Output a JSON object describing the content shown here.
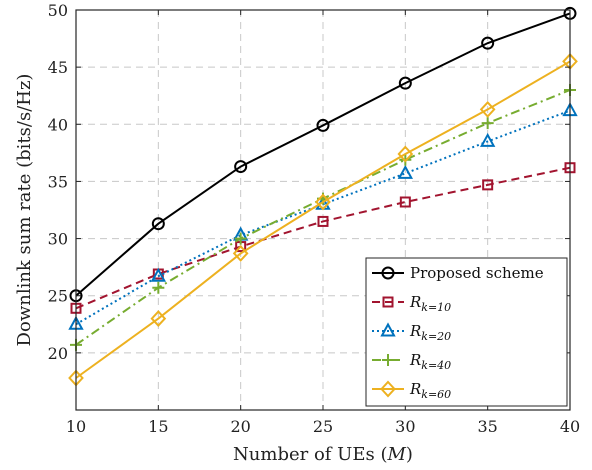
{
  "chart_data": {
    "type": "line",
    "title": "",
    "xlabel": "Number of UEs (M)",
    "xlabel_main": "Number of UEs (",
    "xlabel_var": "M",
    "xlabel_close": ")",
    "ylabel": "Downlink sum rate (bits/s/Hz)",
    "x": [
      10,
      15,
      20,
      25,
      30,
      35,
      40
    ],
    "xlim": [
      10,
      40
    ],
    "ylim": [
      15,
      50
    ],
    "xticks": [
      10,
      15,
      20,
      25,
      30,
      35,
      40
    ],
    "yticks": [
      20,
      25,
      30,
      35,
      40,
      45,
      50
    ],
    "grid": true,
    "legend_position": "lower-right",
    "series": [
      {
        "name": "Proposed scheme",
        "name_main": "Proposed scheme",
        "name_sub": "",
        "color": "#000000",
        "dash": "",
        "marker": "circle",
        "values": [
          25.0,
          31.3,
          36.3,
          39.9,
          43.6,
          47.1,
          49.7
        ]
      },
      {
        "name": "R_{k=10}",
        "name_main": "R",
        "name_sub": "k=10",
        "color": "#a2142f",
        "dash": "8,5",
        "marker": "square",
        "values": [
          23.9,
          26.9,
          29.3,
          31.5,
          33.2,
          34.7,
          36.2
        ]
      },
      {
        "name": "R_{k=20}",
        "name_main": "R",
        "name_sub": "k=20",
        "color": "#0072bd",
        "dash": "2,3",
        "marker": "triangle",
        "values": [
          22.5,
          26.7,
          30.3,
          33.0,
          35.7,
          38.5,
          41.2
        ]
      },
      {
        "name": "R_{k=40}",
        "name_main": "R",
        "name_sub": "k=40",
        "color": "#77ac30",
        "dash": "9,4,2,4",
        "marker": "plus",
        "values": [
          20.7,
          25.7,
          30.0,
          33.5,
          36.9,
          40.1,
          43.0
        ]
      },
      {
        "name": "R_{k=60}",
        "name_main": "R",
        "name_sub": "k=60",
        "color": "#edb120",
        "dash": "",
        "marker": "diamond",
        "values": [
          17.8,
          23.0,
          28.7,
          33.2,
          37.4,
          41.3,
          45.5
        ]
      }
    ]
  }
}
